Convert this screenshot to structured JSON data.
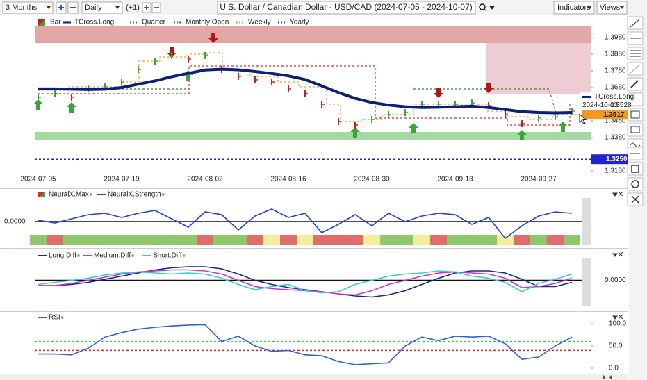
{
  "toolbar": {
    "range": "3 Months",
    "interval": "Daily",
    "offset": "(+1)",
    "title": "U.S. Dollar / Canadian Dollar - USD/CAD (2024-07-05 - 2024-10-07)",
    "indicators": "Indicators",
    "views": "Views"
  },
  "chart_data": [
    {
      "type": "price",
      "categories": [
        "2024-07-05",
        null,
        null,
        null,
        null,
        "2024-07-19",
        null,
        null,
        null,
        null,
        "2024-08-02",
        null,
        null,
        null,
        null,
        "2024-08-16",
        null,
        null,
        null,
        null,
        "2024-08-30",
        null,
        null,
        null,
        null,
        "2024-09-13",
        null,
        null,
        null,
        null,
        "2024-09-27",
        null,
        null
      ],
      "series": [
        {
          "name": "Bar",
          "color": "#3aa63a",
          "down_color": "#c81e1e",
          "values": [
            1.3622,
            1.3643,
            1.3622,
            1.3672,
            1.3684,
            1.3713,
            1.3788,
            1.3838,
            1.3872,
            1.3851,
            1.3872,
            1.3788,
            1.3747,
            1.3726,
            1.3713,
            1.3672,
            1.3643,
            1.358,
            1.3476,
            1.3455,
            1.3488,
            1.3518,
            1.353,
            1.358,
            1.358,
            1.358,
            1.3588,
            1.3572,
            1.3518,
            1.3463,
            1.3497,
            1.3505,
            1.3538
          ]
        },
        {
          "name": "TCross.Long",
          "color": "#0b1f7a",
          "values": [
            1.3672,
            1.3672,
            1.367,
            1.3668,
            1.367,
            1.368,
            1.37,
            1.372,
            1.3745,
            1.3765,
            1.3785,
            1.379,
            1.3786,
            1.3776,
            1.3764,
            1.375,
            1.3728,
            1.369,
            1.365,
            1.3615,
            1.359,
            1.3575,
            1.3565,
            1.356,
            1.3562,
            1.3565,
            1.3568,
            1.356,
            1.3548,
            1.3535,
            1.353,
            1.3528,
            1.353
          ]
        }
      ],
      "overlays": [
        {
          "name": "Quarter",
          "color": "#2a8a2a"
        },
        {
          "name": "Monthly Open",
          "color": "#d42a2a"
        },
        {
          "name": "Weekly",
          "color": "#f0a030"
        }
      ],
      "levels": [
        {
          "name": "Yearly",
          "color": "#2323c8",
          "value": 1.325,
          "label": "1.3250"
        }
      ],
      "last_price": 1.3517,
      "crosshair": {
        "name": "TCross.Long",
        "date": "2024-10-03",
        "value": 1.3528
      },
      "ylim": [
        1.308,
        1.41133
      ],
      "yticks": [
        {
          "value": 1.398,
          "label": "1.3980"
        },
        {
          "value": 1.388,
          "label": "1.3880"
        },
        {
          "value": 1.378,
          "label": "1.3780"
        },
        {
          "value": 1.368,
          "label": "1.3680"
        },
        {
          "value": 1.348,
          "label": "1.3480"
        },
        {
          "value": 1.338,
          "label": "1.3380"
        },
        {
          "value": 1.318,
          "label": "1.3180"
        }
      ],
      "grid": false
    },
    {
      "type": "line",
      "series": [
        {
          "name": "NeuralX.Max",
          "colors": [
            "#8dc96b",
            "#e06c6c",
            "#8dc96b",
            "#8dc96b",
            "#8dc96b",
            "#8dc96b",
            "#8dc96b",
            "#8dc96b",
            "#8dc96b",
            "#8dc96b",
            "#e06c6c",
            "#8dc96b",
            "#8dc96b",
            "#e06c6c",
            "#f3ee9a",
            "#e06c6c",
            "#f3ee9a",
            "#e06c6c",
            "#e06c6c",
            "#e06c6c",
            "#f3ee9a",
            "#8dc96b",
            "#8dc96b",
            "#f3ee9a",
            "#e06c6c",
            "#8dc96b",
            "#8dc96b",
            "#8dc96b",
            "#f3ee9a",
            "#e06c6c",
            "#8dc96b",
            "#e06c6c",
            "#8dc96b"
          ]
        },
        {
          "name": "NeuralX.Strength",
          "color": "#1f3fe0",
          "values": [
            0.1,
            -0.1,
            0.2,
            0.5,
            0.6,
            0.3,
            0.6,
            0.8,
            0.2,
            -0.4,
            0.7,
            0.5,
            -0.6,
            0.4,
            0.9,
            0.3,
            0.6,
            -0.8,
            -0.2,
            0.5,
            -0.3,
            0.6,
            0.0,
            0.4,
            0.6,
            0.5,
            -0.2,
            0.3,
            -1.2,
            -0.3,
            0.4,
            0.7,
            0.6
          ]
        }
      ],
      "ylim": [
        -1.7,
        1.7
      ],
      "yticks": [
        {
          "value": 0,
          "label": "0.0000"
        }
      ],
      "grid": true
    },
    {
      "type": "line",
      "series": [
        {
          "name": "Long.Diff",
          "color": "#0b2a8a",
          "values": [
            -0.25,
            -0.25,
            -0.2,
            -0.1,
            0.05,
            0.2,
            0.35,
            0.5,
            0.6,
            0.65,
            0.65,
            0.55,
            0.3,
            0.0,
            -0.2,
            -0.35,
            -0.45,
            -0.55,
            -0.65,
            -0.75,
            -0.8,
            -0.7,
            -0.5,
            -0.2,
            0.1,
            0.35,
            0.45,
            0.45,
            0.35,
            0.05,
            -0.3,
            -0.3,
            -0.1
          ]
        },
        {
          "name": "Medium.Diff",
          "color": "#cc33cc",
          "values": [
            -0.25,
            -0.25,
            -0.15,
            0.0,
            0.15,
            0.3,
            0.4,
            0.45,
            0.5,
            0.5,
            0.45,
            0.3,
            0.0,
            -0.3,
            -0.4,
            -0.45,
            -0.5,
            -0.55,
            -0.65,
            -0.7,
            -0.5,
            -0.2,
            0.0,
            0.2,
            0.35,
            0.4,
            0.35,
            0.3,
            0.1,
            -0.35,
            -0.3,
            -0.15,
            0.1
          ]
        },
        {
          "name": "Short.Diff",
          "color": "#33cccc",
          "values": [
            -0.2,
            -0.1,
            0.0,
            0.1,
            0.25,
            0.35,
            0.4,
            0.35,
            0.3,
            0.35,
            0.3,
            0.1,
            -0.2,
            -0.45,
            -0.3,
            -0.2,
            -0.5,
            -0.6,
            -0.55,
            -0.2,
            0.0,
            0.2,
            0.3,
            0.35,
            0.45,
            0.4,
            0.2,
            0.1,
            -0.1,
            -0.55,
            -0.15,
            0.05,
            0.3
          ]
        }
      ],
      "ylim": [
        -1.45,
        1.45
      ],
      "yticks": [
        {
          "value": 0,
          "label": "0.0000"
        }
      ],
      "grid": true
    },
    {
      "type": "line",
      "series": [
        {
          "name": "RSI",
          "color": "#2f5fe0",
          "values": [
            32,
            32,
            30,
            45,
            70,
            80,
            88,
            92,
            95,
            97,
            98,
            60,
            72,
            50,
            38,
            40,
            30,
            28,
            15,
            8,
            10,
            12,
            50,
            70,
            62,
            72,
            70,
            72,
            55,
            20,
            25,
            50,
            70
          ]
        }
      ],
      "levels": [
        {
          "value": 60,
          "color": "#33cc33"
        },
        {
          "value": 40,
          "color": "#dd2222"
        }
      ],
      "ylim": [
        -12.5,
        125
      ],
      "yticks": [
        {
          "value": 100,
          "label": "100.0"
        },
        {
          "value": 50,
          "label": "50.0"
        },
        {
          "value": 0,
          "label": "0.0"
        }
      ],
      "grid": false
    }
  ]
}
